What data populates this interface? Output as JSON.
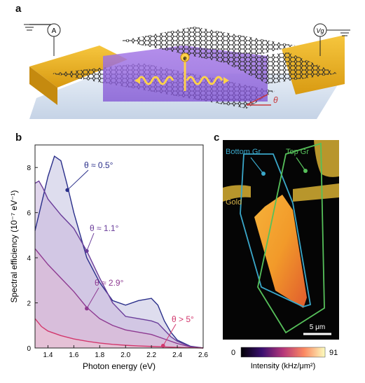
{
  "panels": {
    "a": "a",
    "b": "b",
    "c": "c"
  },
  "panel_a": {
    "ammeter_label": "A",
    "voltage_label": "Vg",
    "electron_label": "e",
    "twist_label": "θ"
  },
  "chart_data": {
    "type": "area",
    "xlabel": "Photon energy (eV)",
    "ylabel": "Spectral efficiency (10⁻⁷ eV⁻¹)",
    "xlim": [
      1.3,
      2.6
    ],
    "ylim": [
      0,
      9
    ],
    "xticks": [
      "1.4",
      "1.6",
      "1.8",
      "2.0",
      "2.2",
      "2.4",
      "2.6"
    ],
    "yticks": [
      "0",
      "2",
      "4",
      "6",
      "8"
    ],
    "series": [
      {
        "name": "θ ≈ 0.5°",
        "color": "#2a2f8a",
        "fill": "#c3c1e0",
        "x": [
          1.3,
          1.35,
          1.4,
          1.45,
          1.5,
          1.55,
          1.6,
          1.7,
          1.8,
          1.9,
          2.0,
          2.1,
          2.2,
          2.25,
          2.3,
          2.35,
          2.4,
          2.5,
          2.6
        ],
        "y": [
          5.2,
          6.4,
          7.6,
          8.5,
          8.3,
          7.2,
          6.0,
          4.0,
          2.9,
          2.1,
          1.9,
          2.1,
          2.2,
          1.9,
          1.2,
          0.7,
          0.35,
          0.08,
          0
        ],
        "marker": {
          "x": 1.55,
          "y": 7.0
        }
      },
      {
        "name": "θ ≈ 1.1°",
        "color": "#6a3d9a",
        "fill": "#c9b4dd",
        "x": [
          1.3,
          1.33,
          1.36,
          1.4,
          1.5,
          1.6,
          1.7,
          1.8,
          1.9,
          2.0,
          2.1,
          2.2,
          2.25,
          2.3,
          2.35,
          2.4,
          2.5,
          2.6
        ],
        "y": [
          7.3,
          7.4,
          7.1,
          6.6,
          5.9,
          5.3,
          4.3,
          3.1,
          2.0,
          1.4,
          1.3,
          1.2,
          1.1,
          0.8,
          0.5,
          0.3,
          0.06,
          0
        ],
        "marker": {
          "x": 1.7,
          "y": 4.3
        }
      },
      {
        "name": "θ ≈ 2.9°",
        "color": "#8e3a91",
        "fill": "#ddb7d3",
        "x": [
          1.3,
          1.4,
          1.5,
          1.6,
          1.7,
          1.8,
          1.9,
          2.0,
          2.1,
          2.2,
          2.3,
          2.4,
          2.5,
          2.6
        ],
        "y": [
          4.4,
          3.7,
          3.1,
          2.5,
          1.8,
          1.3,
          1.0,
          0.8,
          0.7,
          0.6,
          0.4,
          0.2,
          0.05,
          0
        ],
        "marker": {
          "x": 1.7,
          "y": 1.75
        }
      },
      {
        "name": "θ > 5°",
        "color": "#d2386d",
        "fill": "#f0c2d2",
        "x": [
          1.3,
          1.35,
          1.4,
          1.5,
          1.6,
          1.7,
          1.8,
          1.9,
          2.0,
          2.1,
          2.2,
          2.3,
          2.4,
          2.5,
          2.6
        ],
        "y": [
          1.3,
          0.95,
          0.75,
          0.55,
          0.4,
          0.3,
          0.22,
          0.16,
          0.12,
          0.09,
          0.07,
          0.05,
          0.03,
          0.01,
          0
        ],
        "marker": {
          "x": 2.29,
          "y": 0.1
        }
      }
    ]
  },
  "panel_c": {
    "bottom_label": "Bottom Gr",
    "top_label": "Top Gr",
    "gold_label": "Gold",
    "scalebar_label": "5 μm",
    "colorbar_min": "0",
    "colorbar_max": "91",
    "colorbar_title": "Intensity (kHz/μm²)",
    "colors": {
      "bottom": "#3aa7c9",
      "top": "#56c05a",
      "gold": "#b8962c"
    }
  }
}
